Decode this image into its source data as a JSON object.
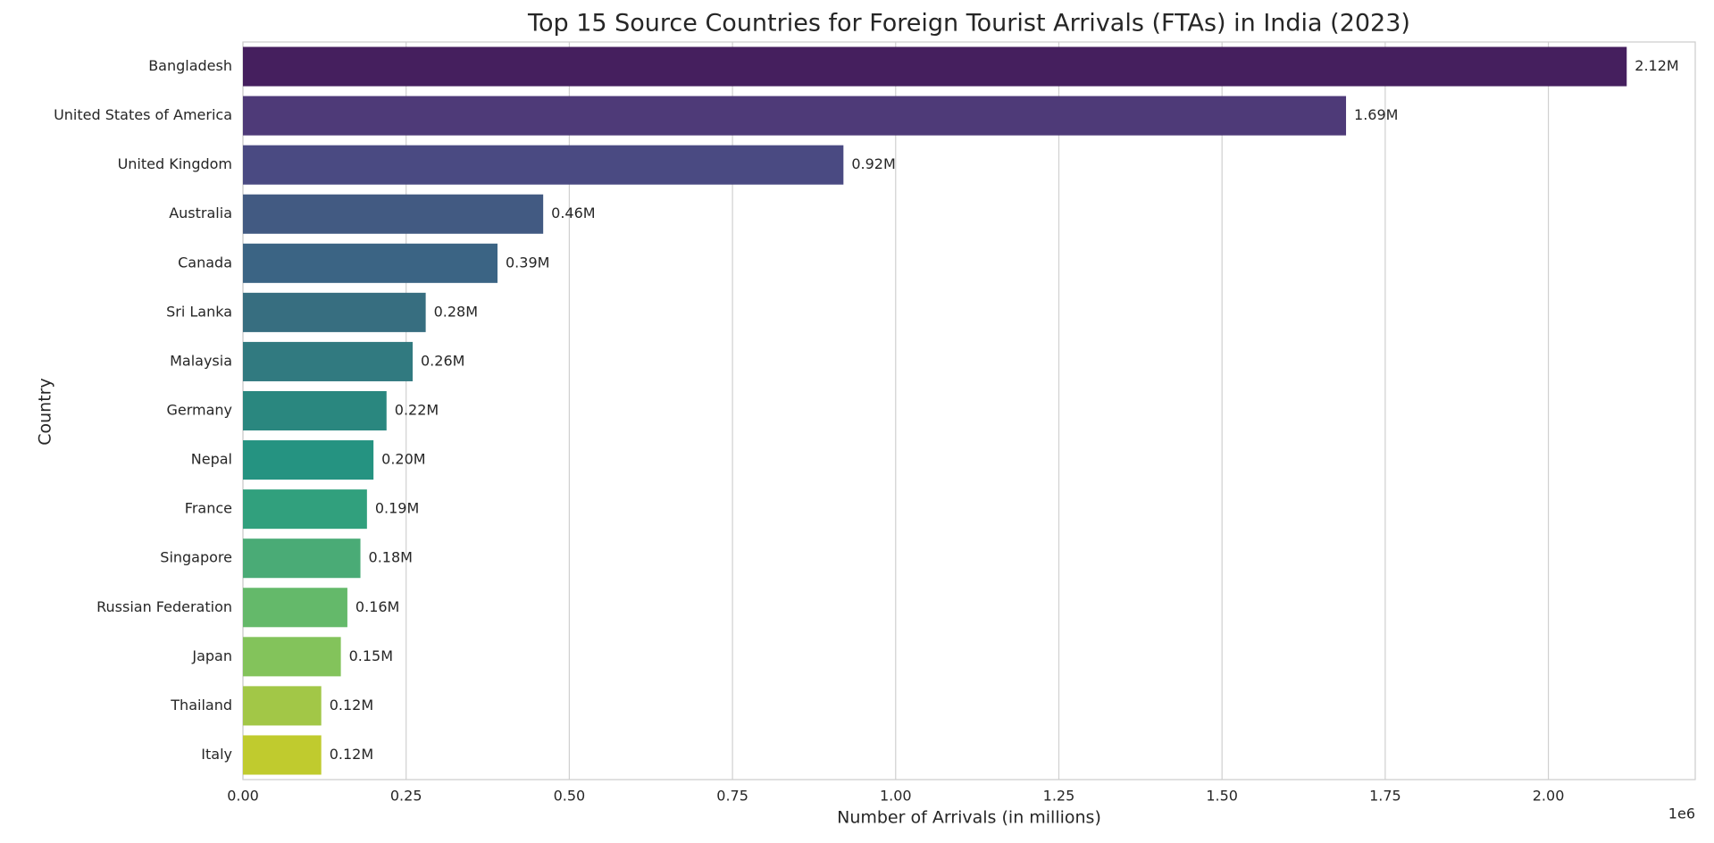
{
  "chart_data": {
    "type": "barh",
    "title": "Top 15 Source Countries for Foreign Tourist Arrivals (FTAs) in India (2023)",
    "xlabel": "Number of Arrivals (in millions)",
    "ylabel": "Country",
    "x_offset_label": "1e6",
    "categories": [
      "Bangladesh",
      "United States of America",
      "United Kingdom",
      "Australia",
      "Canada",
      "Sri Lanka",
      "Malaysia",
      "Germany",
      "Nepal",
      "France",
      "Singapore",
      "Russian Federation",
      "Japan",
      "Thailand",
      "Italy"
    ],
    "values": [
      2120000,
      1690000,
      920000,
      460000,
      390000,
      280000,
      260000,
      220000,
      200000,
      190000,
      180000,
      160000,
      150000,
      120000,
      120000
    ],
    "value_labels": [
      "2.12M",
      "1.69M",
      "0.92M",
      "0.46M",
      "0.39M",
      "0.28M",
      "0.26M",
      "0.22M",
      "0.20M",
      "0.19M",
      "0.18M",
      "0.16M",
      "0.15M",
      "0.12M",
      "0.12M"
    ],
    "colors": [
      "#451f5e",
      "#4e3a78",
      "#4a4a82",
      "#425a82",
      "#3b6484",
      "#376e80",
      "#317a80",
      "#2a877f",
      "#259381",
      "#31a07d",
      "#4aab76",
      "#64b96a",
      "#83c35b",
      "#a2c747",
      "#c0cb2e"
    ],
    "xlim": [
      0,
      2225000
    ],
    "xticks": [
      {
        "value": 0,
        "label": "0.00"
      },
      {
        "value": 250000,
        "label": "0.25"
      },
      {
        "value": 500000,
        "label": "0.50"
      },
      {
        "value": 750000,
        "label": "0.75"
      },
      {
        "value": 1000000,
        "label": "1.00"
      },
      {
        "value": 1250000,
        "label": "1.25"
      },
      {
        "value": 1500000,
        "label": "1.50"
      },
      {
        "value": 1750000,
        "label": "1.75"
      },
      {
        "value": 2000000,
        "label": "2.00"
      }
    ],
    "grid": true
  }
}
